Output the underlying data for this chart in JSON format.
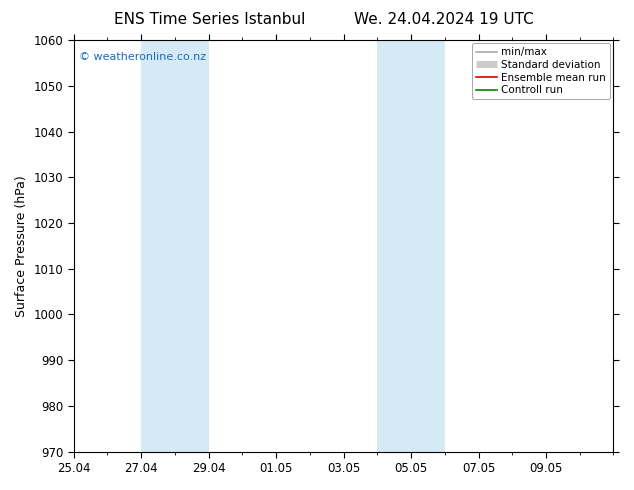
{
  "title_left": "ENS Time Series Istanbul",
  "title_right": "We. 24.04.2024 19 UTC",
  "ylabel": "Surface Pressure (hPa)",
  "ylim": [
    970,
    1060
  ],
  "yticks": [
    970,
    980,
    990,
    1000,
    1010,
    1020,
    1030,
    1040,
    1050,
    1060
  ],
  "xlim": [
    0,
    16
  ],
  "xtick_labels": [
    "25.04",
    "27.04",
    "29.04",
    "01.05",
    "03.05",
    "05.05",
    "07.05",
    "09.05"
  ],
  "xtick_positions": [
    0,
    2,
    4,
    6,
    8,
    10,
    12,
    14
  ],
  "shaded_regions": [
    {
      "x_start": 2,
      "x_end": 4,
      "color": "#d6eaf5"
    },
    {
      "x_start": 9.3,
      "x_end": 10.7,
      "color": "#d6eaf5"
    },
    {
      "x_start": 10.7,
      "x_end": 11.3,
      "color": "#d6eaf5"
    }
  ],
  "shaded_bands": [
    {
      "x_start": 2.0,
      "x_end": 4.0
    },
    {
      "x_start": 9.0,
      "x_end": 11.0
    }
  ],
  "watermark": "© weatheronline.co.nz",
  "watermark_color": "#1a6bbf",
  "legend_entries": [
    {
      "label": "min/max",
      "color": "#aaaaaa",
      "lw": 1.2,
      "type": "line"
    },
    {
      "label": "Standard deviation",
      "color": "#cccccc",
      "lw": 5,
      "type": "thick"
    },
    {
      "label": "Ensemble mean run",
      "color": "#dd0000",
      "lw": 1.2,
      "type": "line"
    },
    {
      "label": "Controll run",
      "color": "#008800",
      "lw": 1.2,
      "type": "line"
    }
  ],
  "bg_color": "#ffffff",
  "title_fontsize": 11,
  "tick_fontsize": 8.5,
  "label_fontsize": 9
}
